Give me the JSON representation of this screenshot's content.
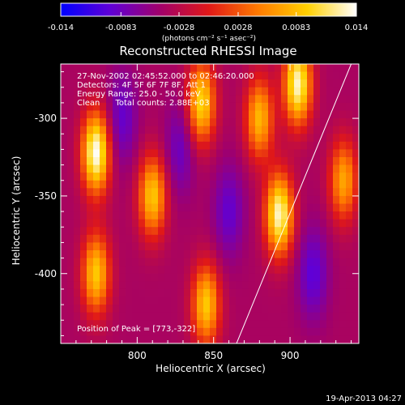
{
  "colorbar": {
    "tick_labels": [
      "-0.014",
      "-0.0083",
      "-0.0028",
      "0.0028",
      "0.0083",
      "0.014"
    ],
    "tick_values": [
      -0.014,
      -0.0083,
      -0.0028,
      0.0028,
      0.0083,
      0.014
    ],
    "range": [
      -0.014,
      0.014
    ],
    "units_label": "(photons cm⁻² s⁻¹ asec⁻²)",
    "colors": [
      "#0000ff",
      "#5f00d7",
      "#a0006c",
      "#e01818",
      "#ff7a00",
      "#ffd000",
      "#ffffff"
    ]
  },
  "title": "Reconstructed RHESSI Image",
  "info": {
    "line1": "27-Nov-2002 02:45:52.000 to 02:46:20.000",
    "line2": "Detectors: 4F 5F 6F 7F 8F, Att 1",
    "line3": "Energy Range: 25.0 - 50.0 keV",
    "line4": "Clean      Total counts: 2.88E+03",
    "peak": "Position of Peak = [773,-322]"
  },
  "footer_date": "19-Apr-2013 04:27",
  "chart_data": {
    "type": "heatmap",
    "title": "Reconstructed RHESSI Image",
    "xlabel": "Heliocentric X (arcsec)",
    "ylabel": "Heliocentric Y (arcsec)",
    "xlim": [
      750,
      945
    ],
    "ylim": [
      -445,
      -265
    ],
    "x_ticks": [
      800,
      850,
      900
    ],
    "y_ticks": [
      -300,
      -350,
      -400
    ],
    "x_tick_labels": [
      "800",
      "850",
      "900"
    ],
    "y_tick_labels": [
      "-300",
      "-350",
      "-400"
    ],
    "value_range": [
      -0.014,
      0.014
    ],
    "limb_line": [
      [
        865,
        -445
      ],
      [
        940,
        -265
      ]
    ],
    "peak": [
      773,
      -322
    ],
    "sources": [
      {
        "x": 773,
        "y": -322,
        "value": 0.014
      },
      {
        "x": 773,
        "y": -400,
        "value": 0.009
      },
      {
        "x": 810,
        "y": -350,
        "value": 0.009
      },
      {
        "x": 842,
        "y": -290,
        "value": 0.01
      },
      {
        "x": 845,
        "y": -420,
        "value": 0.009
      },
      {
        "x": 880,
        "y": -300,
        "value": 0.008
      },
      {
        "x": 893,
        "y": -362,
        "value": 0.013
      },
      {
        "x": 905,
        "y": -278,
        "value": 0.013
      },
      {
        "x": 935,
        "y": -340,
        "value": 0.007
      }
    ],
    "minima": [
      {
        "x": 790,
        "y": -300,
        "value": -0.01
      },
      {
        "x": 828,
        "y": -320,
        "value": -0.009
      },
      {
        "x": 860,
        "y": -360,
        "value": -0.01
      },
      {
        "x": 915,
        "y": -400,
        "value": -0.011
      }
    ]
  }
}
